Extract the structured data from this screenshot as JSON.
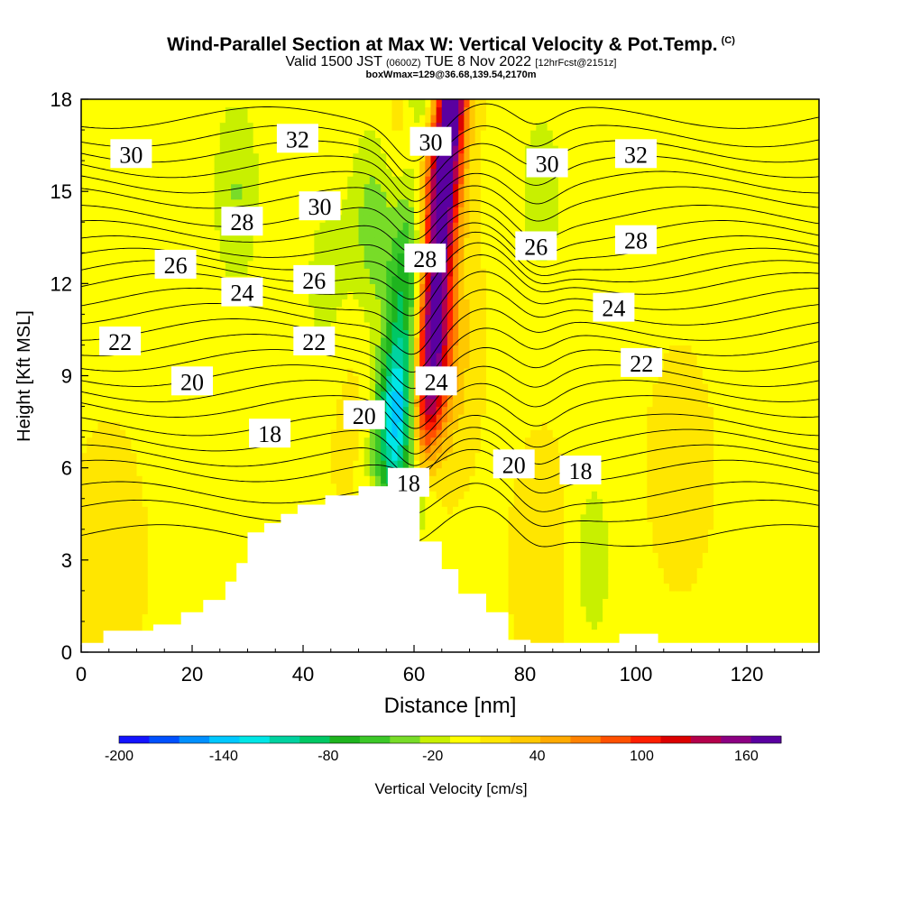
{
  "header": {
    "title": "Wind-Parallel Section at Max W: Vertical Velocity & Pot.Temp.",
    "copyright": "(C)",
    "valid_prefix": "Valid 1500 JST",
    "utc": "(0600Z)",
    "valid_date": "TUE 8 Nov 2022",
    "forecast": "[12hrFcst@2151z]",
    "box_info": "boxWmax=129@36.68,139.54,2170m"
  },
  "chart_data": {
    "type": "heatmap",
    "xlabel": "Distance [nm]",
    "ylabel": "Height [Kft MSL]",
    "xlim": [
      0,
      133
    ],
    "ylim": [
      0,
      18
    ],
    "x_ticks": [
      0,
      20,
      40,
      60,
      80,
      100,
      120
    ],
    "y_ticks": [
      0,
      3,
      6,
      9,
      12,
      15,
      18
    ],
    "grid": false,
    "colorbar": {
      "label": "Vertical Velocity [cm/s]",
      "ticks": [
        "-200",
        "-140",
        "-80",
        "-20",
        "40",
        "100",
        "160"
      ],
      "tick_values": [
        -200,
        -140,
        -80,
        -20,
        40,
        100,
        160
      ],
      "min": -200,
      "max": 180,
      "colors": [
        "#1414ff",
        "#0050ff",
        "#0090ff",
        "#00c8ff",
        "#00e6e6",
        "#00d2a0",
        "#00c864",
        "#1eb41e",
        "#3cc828",
        "#78dc28",
        "#c8f000",
        "#ffff00",
        "#ffe600",
        "#ffc800",
        "#ffaa00",
        "#ff8200",
        "#ff5000",
        "#ff1e00",
        "#dc0000",
        "#b4004b",
        "#8c0082",
        "#5a00a0"
      ]
    },
    "vertical_velocity_features": [
      {
        "kind": "downdraft",
        "x": 57,
        "y": 6.5,
        "w": -150
      },
      {
        "kind": "downdraft",
        "x": 53,
        "y": 14,
        "w": -80
      },
      {
        "kind": "downdraft",
        "x": 28,
        "y": 15,
        "w": -60
      },
      {
        "kind": "downdraft",
        "x": 44,
        "y": 12,
        "w": -40
      },
      {
        "kind": "downdraft",
        "x": 83,
        "y": 15,
        "w": -45
      },
      {
        "kind": "downdraft",
        "x": 92,
        "y": 3,
        "w": -45
      },
      {
        "kind": "updraft",
        "x": 62,
        "y": 16,
        "w": 175
      },
      {
        "kind": "updraft",
        "x": 64,
        "y": 10,
        "w": 120
      },
      {
        "kind": "updraft",
        "x": 5,
        "y": 3,
        "w": 30
      },
      {
        "kind": "updraft",
        "x": 50,
        "y": 8,
        "w": 20
      },
      {
        "kind": "updraft",
        "x": 84,
        "y": 3,
        "w": 30
      },
      {
        "kind": "updraft",
        "x": 108,
        "y": 6,
        "w": 20
      }
    ],
    "terrain": [
      [
        0,
        0.3
      ],
      [
        4,
        0.3
      ],
      [
        4,
        0.7
      ],
      [
        13,
        0.7
      ],
      [
        13,
        0.9
      ],
      [
        18,
        0.9
      ],
      [
        18,
        1.3
      ],
      [
        22,
        1.3
      ],
      [
        22,
        1.7
      ],
      [
        26,
        1.7
      ],
      [
        26,
        2.3
      ],
      [
        28,
        2.3
      ],
      [
        28,
        2.9
      ],
      [
        30,
        2.9
      ],
      [
        30,
        3.9
      ],
      [
        33,
        3.9
      ],
      [
        33,
        4.2
      ],
      [
        36,
        4.2
      ],
      [
        36,
        4.5
      ],
      [
        39,
        4.5
      ],
      [
        39,
        4.8
      ],
      [
        44,
        4.8
      ],
      [
        44,
        5.1
      ],
      [
        50,
        5.1
      ],
      [
        50,
        5.4
      ],
      [
        57,
        5.4
      ],
      [
        57,
        5.6
      ],
      [
        61,
        5.6
      ],
      [
        61,
        3.6
      ],
      [
        65,
        3.6
      ],
      [
        65,
        2.7
      ],
      [
        68,
        2.7
      ],
      [
        68,
        1.9
      ],
      [
        73,
        1.9
      ],
      [
        73,
        1.3
      ],
      [
        77,
        1.3
      ],
      [
        77,
        0.4
      ],
      [
        81,
        0.4
      ],
      [
        81,
        0.3
      ],
      [
        97,
        0.3
      ],
      [
        97,
        0.6
      ],
      [
        104,
        0.6
      ],
      [
        104,
        0.3
      ],
      [
        133,
        0.3
      ]
    ],
    "isentrope_labels": [
      {
        "text": "30",
        "x": 9,
        "y": 16.2
      },
      {
        "text": "32",
        "x": 39,
        "y": 16.7
      },
      {
        "text": "30",
        "x": 63,
        "y": 16.6
      },
      {
        "text": "30",
        "x": 84,
        "y": 15.9
      },
      {
        "text": "32",
        "x": 100,
        "y": 16.2
      },
      {
        "text": "28",
        "x": 29,
        "y": 14.0
      },
      {
        "text": "30",
        "x": 43,
        "y": 14.5
      },
      {
        "text": "26",
        "x": 17,
        "y": 12.6
      },
      {
        "text": "28",
        "x": 62,
        "y": 12.8
      },
      {
        "text": "26",
        "x": 82,
        "y": 13.2
      },
      {
        "text": "28",
        "x": 100,
        "y": 13.4
      },
      {
        "text": "24",
        "x": 29,
        "y": 11.7
      },
      {
        "text": "26",
        "x": 42,
        "y": 12.1
      },
      {
        "text": "24",
        "x": 96,
        "y": 11.2
      },
      {
        "text": "22",
        "x": 7,
        "y": 10.1
      },
      {
        "text": "22",
        "x": 42,
        "y": 10.1
      },
      {
        "text": "22",
        "x": 101,
        "y": 9.4
      },
      {
        "text": "20",
        "x": 20,
        "y": 8.8
      },
      {
        "text": "24",
        "x": 64,
        "y": 8.8
      },
      {
        "text": "20",
        "x": 51,
        "y": 7.7
      },
      {
        "text": "18",
        "x": 34,
        "y": 7.1
      },
      {
        "text": "20",
        "x": 78,
        "y": 6.1
      },
      {
        "text": "18",
        "x": 90,
        "y": 5.9
      },
      {
        "text": "18",
        "x": 59,
        "y": 5.5
      }
    ],
    "isentrope_levels": [
      3.8,
      4.6,
      5.2,
      5.9,
      6.4,
      6.9,
      7.4,
      8.0,
      8.5,
      9.0,
      9.5,
      10.0,
      10.5,
      11.0,
      11.5,
      12.0,
      12.4,
      12.8,
      13.2,
      13.7,
      14.2,
      14.8,
      15.3,
      15.8,
      16.3,
      16.8,
      17.4
    ]
  }
}
